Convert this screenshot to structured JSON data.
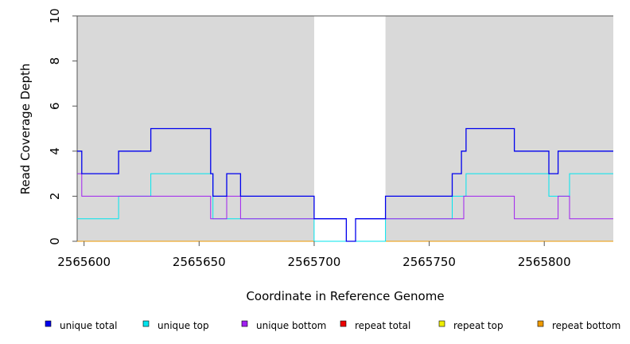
{
  "chart_data": {
    "type": "line",
    "title": "",
    "xlabel": "Coordinate in Reference Genome",
    "ylabel": "Read Coverage Depth",
    "xlim": [
      2565597,
      2565830
    ],
    "ylim": [
      0,
      10
    ],
    "x_ticks": [
      2565600,
      2565650,
      2565700,
      2565750,
      2565800
    ],
    "y_ticks": [
      0,
      2,
      4,
      6,
      8,
      10
    ],
    "x_tick_labels": [
      "2565600",
      "2565650",
      "2565700",
      "2565750",
      "2565800"
    ],
    "y_tick_labels": [
      "0",
      "2",
      "4",
      "6",
      "8",
      "10"
    ],
    "shaded_regions": [
      {
        "x": [
          2565597,
          2565700
        ],
        "color": "#d9d9d9"
      },
      {
        "x": [
          2565731,
          2565830
        ],
        "color": "#d9d9d9"
      }
    ],
    "legend_position": "bottom",
    "series": [
      {
        "name": "unique total",
        "color": "#0000ee",
        "x": [
          2565597,
          2565599,
          2565599,
          2565615,
          2565615,
          2565629,
          2565629,
          2565655,
          2565655,
          2565656,
          2565656,
          2565662,
          2565662,
          2565668,
          2565668,
          2565700,
          2565700,
          2565714,
          2565714,
          2565718,
          2565718,
          2565731,
          2565731,
          2565760,
          2565760,
          2565764,
          2565764,
          2565766,
          2565766,
          2565787,
          2565787,
          2565802,
          2565802,
          2565806,
          2565806,
          2565830
        ],
        "y": [
          4,
          4,
          3,
          3,
          4,
          4,
          5,
          5,
          3,
          3,
          2,
          2,
          3,
          3,
          2,
          2,
          1,
          1,
          0,
          0,
          1,
          1,
          2,
          2,
          3,
          3,
          4,
          4,
          5,
          5,
          4,
          4,
          3,
          3,
          4,
          4
        ]
      },
      {
        "name": "unique top",
        "color": "#00e5ee",
        "x": [
          2565597,
          2565615,
          2565615,
          2565629,
          2565629,
          2565656,
          2565656,
          2565700,
          2565700,
          2565731,
          2565731,
          2565760,
          2565760,
          2565766,
          2565766,
          2565802,
          2565802,
          2565811,
          2565811,
          2565830
        ],
        "y": [
          1,
          1,
          2,
          2,
          3,
          3,
          1,
          1,
          0,
          0,
          1,
          1,
          2,
          2,
          3,
          3,
          2,
          2,
          3,
          3
        ]
      },
      {
        "name": "unique bottom",
        "color": "#a020f0",
        "x": [
          2565597,
          2565599,
          2565599,
          2565655,
          2565655,
          2565662,
          2565662,
          2565668,
          2565668,
          2565700,
          2565700,
          2565714,
          2565714,
          2565718,
          2565718,
          2565731,
          2565731,
          2565765,
          2565765,
          2565787,
          2565787,
          2565806,
          2565806,
          2565811,
          2565811,
          2565830
        ],
        "y": [
          3,
          3,
          2,
          2,
          1,
          1,
          2,
          2,
          1,
          1,
          1,
          1,
          0,
          0,
          1,
          1,
          1,
          1,
          2,
          2,
          1,
          1,
          2,
          2,
          1,
          1
        ]
      },
      {
        "name": "repeat total",
        "color": "#ee0000",
        "x": [
          2565597,
          2565830
        ],
        "y": [
          0,
          0
        ]
      },
      {
        "name": "repeat top",
        "color": "#eeee00",
        "x": [
          2565597,
          2565830
        ],
        "y": [
          0,
          0
        ]
      },
      {
        "name": "repeat bottom",
        "color": "#ee9a00",
        "x": [
          2565597,
          2565830
        ],
        "y": [
          0,
          0
        ]
      }
    ]
  }
}
